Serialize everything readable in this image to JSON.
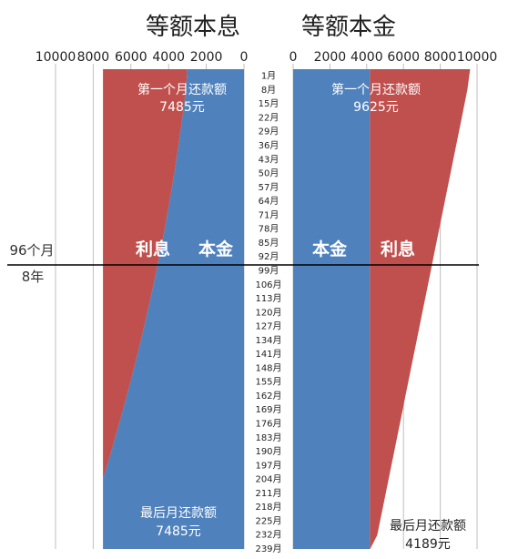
{
  "titles": {
    "left": "等额本息",
    "right": "等额本金"
  },
  "colors": {
    "interest": "#c0504d",
    "principal": "#4f81bd",
    "label_dark": "#1a1a1a",
    "label_light": "#ffffff"
  },
  "divider": {
    "label_months": "96个月",
    "label_years": "8年"
  },
  "chart_data": [
    {
      "type": "area",
      "title": "等额本息",
      "x_axis": {
        "range": [
          10000,
          0
        ],
        "ticks": [
          10000,
          8000,
          6000,
          4000,
          2000,
          0
        ]
      },
      "months": [
        "1月",
        "8月",
        "15月",
        "22月",
        "29月",
        "36月",
        "43月",
        "50月",
        "57月",
        "64月",
        "71月",
        "78月",
        "85月",
        "92月",
        "99月",
        "106月",
        "113月",
        "120月",
        "127月",
        "134月",
        "141月",
        "148月",
        "155月",
        "162月",
        "169月",
        "176月",
        "183月",
        "190月",
        "197月",
        "204月",
        "211月",
        "218月",
        "225月",
        "232月",
        "239月"
      ],
      "series": [
        {
          "name": "利息",
          "values": [
            4485,
            4400,
            4310,
            4215,
            4115,
            4010,
            3900,
            3785,
            3665,
            3540,
            3410,
            3275,
            3135,
            2990,
            2840,
            2685,
            2525,
            2360,
            2190,
            2015,
            1835,
            1650,
            1460,
            1265,
            1065,
            860,
            650,
            440,
            230,
            0,
            0,
            0,
            0,
            0,
            0
          ]
        },
        {
          "name": "本金",
          "values": [
            3000,
            3085,
            3175,
            3270,
            3370,
            3475,
            3585,
            3700,
            3820,
            3945,
            4075,
            4210,
            4350,
            4495,
            4645,
            4800,
            4960,
            5125,
            5295,
            5470,
            5650,
            5835,
            6025,
            6220,
            6420,
            6625,
            6835,
            7045,
            7255,
            7485,
            7485,
            7485,
            7485,
            7485,
            7485
          ]
        }
      ],
      "first_month_label": "第一个月还款额",
      "first_month_value": "7485元",
      "last_month_label": "最后月还款额",
      "last_month_value": "7485元"
    },
    {
      "type": "area",
      "title": "等额本金",
      "x_axis": {
        "range": [
          0,
          10000
        ],
        "ticks": [
          0,
          2000,
          4000,
          6000,
          8000,
          10000
        ]
      },
      "months": [
        "1月",
        "8月",
        "15月",
        "22月",
        "29月",
        "36月",
        "43月",
        "50月",
        "57月",
        "64月",
        "71月",
        "78月",
        "85月",
        "92月",
        "99月",
        "106月",
        "113月",
        "120月",
        "127月",
        "134月",
        "141月",
        "148月",
        "155月",
        "162月",
        "169月",
        "176月",
        "183月",
        "190月",
        "197月",
        "204月",
        "211月",
        "218月",
        "225月",
        "232月",
        "239月"
      ],
      "series": [
        {
          "name": "本金",
          "values": [
            4167,
            4167,
            4167,
            4167,
            4167,
            4167,
            4167,
            4167,
            4167,
            4167,
            4167,
            4167,
            4167,
            4167,
            4167,
            4167,
            4167,
            4167,
            4167,
            4167,
            4167,
            4167,
            4167,
            4167,
            4167,
            4167,
            4167,
            4167,
            4167,
            4167,
            4167,
            4167,
            4167,
            4167,
            4167
          ]
        },
        {
          "name": "利息",
          "values": [
            5458,
            5305,
            5152,
            4999,
            4846,
            4693,
            4540,
            4387,
            4234,
            4081,
            3928,
            3775,
            3622,
            3469,
            3316,
            3163,
            3010,
            2857,
            2704,
            2551,
            2398,
            2245,
            2092,
            1939,
            1786,
            1633,
            1480,
            1327,
            1174,
            1021,
            868,
            715,
            562,
            409,
            22
          ]
        }
      ],
      "first_month_label": "第一个月还款额",
      "first_month_value": "9625元",
      "last_month_label": "最后月还款额",
      "last_month_value": "4189元"
    }
  ]
}
